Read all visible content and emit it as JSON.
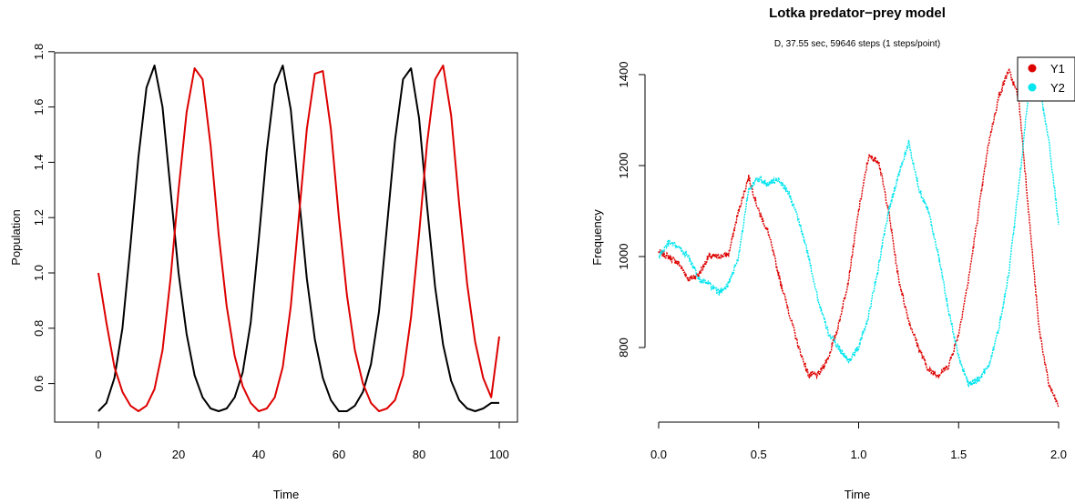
{
  "chart_data": [
    {
      "type": "line",
      "title": "",
      "xlabel": "Time",
      "ylabel": "Population",
      "xlim": [
        0,
        100
      ],
      "ylim": [
        0.5,
        1.75
      ],
      "xticks": [
        0,
        20,
        40,
        60,
        80,
        100
      ],
      "yticks": [
        0.6,
        0.8,
        1.0,
        1.2,
        1.4,
        1.6,
        1.8
      ],
      "xtick_labels": [
        "0",
        "20",
        "40",
        "60",
        "80",
        "100"
      ],
      "ytick_labels": [
        "0.6",
        "0.8",
        "1.0",
        "1.2",
        "1.4",
        "1.6",
        "1.8"
      ],
      "series_colors": [
        "#000000",
        "#dd0000"
      ],
      "series": [
        {
          "x": [
            0,
            2,
            4,
            6,
            8,
            10,
            12,
            14,
            16,
            18,
            20,
            22,
            24,
            26,
            28,
            30,
            32,
            34,
            36,
            38,
            40,
            42,
            44,
            46,
            48,
            50,
            52,
            54,
            56,
            58,
            60,
            62,
            64,
            66,
            68,
            70,
            72,
            74,
            76,
            78,
            80,
            82,
            84,
            86,
            88,
            90,
            92,
            94,
            96,
            98,
            100
          ],
          "values": [
            0.5,
            0.53,
            0.62,
            0.8,
            1.1,
            1.42,
            1.67,
            1.75,
            1.6,
            1.3,
            1.0,
            0.78,
            0.63,
            0.55,
            0.51,
            0.5,
            0.51,
            0.55,
            0.64,
            0.82,
            1.12,
            1.44,
            1.68,
            1.75,
            1.59,
            1.28,
            0.98,
            0.76,
            0.62,
            0.54,
            0.5,
            0.5,
            0.52,
            0.57,
            0.67,
            0.86,
            1.17,
            1.48,
            1.7,
            1.74,
            1.56,
            1.24,
            0.95,
            0.74,
            0.61,
            0.54,
            0.51,
            0.5,
            0.51,
            0.53,
            0.53
          ]
        },
        {
          "x": [
            0,
            2,
            4,
            6,
            8,
            10,
            12,
            14,
            16,
            18,
            20,
            22,
            24,
            26,
            28,
            30,
            32,
            34,
            36,
            38,
            40,
            42,
            44,
            46,
            48,
            50,
            52,
            54,
            56,
            58,
            60,
            62,
            64,
            66,
            68,
            70,
            72,
            74,
            76,
            78,
            80,
            82,
            84,
            86,
            88,
            90,
            92,
            94,
            96,
            98,
            100
          ],
          "values": [
            1.0,
            0.82,
            0.66,
            0.57,
            0.52,
            0.5,
            0.52,
            0.58,
            0.72,
            0.98,
            1.3,
            1.58,
            1.74,
            1.7,
            1.46,
            1.14,
            0.88,
            0.7,
            0.59,
            0.53,
            0.5,
            0.51,
            0.55,
            0.66,
            0.88,
            1.2,
            1.52,
            1.72,
            1.73,
            1.52,
            1.2,
            0.92,
            0.72,
            0.6,
            0.53,
            0.5,
            0.51,
            0.54,
            0.63,
            0.84,
            1.14,
            1.47,
            1.7,
            1.75,
            1.57,
            1.25,
            0.96,
            0.75,
            0.62,
            0.55,
            0.77
          ]
        }
      ]
    },
    {
      "type": "line",
      "title": "Lotka predator−prey model",
      "subtitle": "D, 37.55 sec, 59646 steps (1 steps/point)",
      "xlabel": "Time",
      "ylabel": "Frequency",
      "xlim": [
        0,
        2.0
      ],
      "ylim": [
        660,
        1420
      ],
      "xticks": [
        0.0,
        0.5,
        1.0,
        1.5,
        2.0
      ],
      "yticks": [
        800,
        1000,
        1200,
        1400
      ],
      "xtick_labels": [
        "0.0",
        "0.5",
        "1.0",
        "1.5",
        "2.0"
      ],
      "ytick_labels": [
        "800",
        "1000",
        "1200",
        "1400"
      ],
      "legend_position": "top-right",
      "series": [
        {
          "name": "Y1",
          "color": "#dd0000",
          "x": [
            0,
            0.05,
            0.1,
            0.15,
            0.2,
            0.25,
            0.3,
            0.35,
            0.4,
            0.45,
            0.5,
            0.55,
            0.6,
            0.65,
            0.7,
            0.75,
            0.8,
            0.85,
            0.9,
            0.95,
            1.0,
            1.05,
            1.1,
            1.15,
            1.2,
            1.25,
            1.3,
            1.35,
            1.4,
            1.45,
            1.5,
            1.55,
            1.6,
            1.65,
            1.7,
            1.75,
            1.8,
            1.85,
            1.9,
            1.95,
            2.0
          ],
          "values": [
            1010,
            1000,
            985,
            950,
            960,
            1000,
            1000,
            1005,
            1100,
            1175,
            1100,
            1050,
            960,
            880,
            800,
            740,
            740,
            780,
            850,
            950,
            1100,
            1220,
            1210,
            1100,
            950,
            860,
            800,
            750,
            740,
            760,
            830,
            950,
            1100,
            1250,
            1350,
            1410,
            1350,
            1100,
            850,
            720,
            670
          ]
        },
        {
          "name": "Y2",
          "color": "#00e5ee",
          "x": [
            0,
            0.05,
            0.1,
            0.15,
            0.2,
            0.25,
            0.3,
            0.35,
            0.4,
            0.45,
            0.5,
            0.55,
            0.6,
            0.65,
            0.7,
            0.75,
            0.8,
            0.85,
            0.9,
            0.95,
            1.0,
            1.05,
            1.1,
            1.15,
            1.2,
            1.25,
            1.3,
            1.35,
            1.4,
            1.45,
            1.5,
            1.55,
            1.6,
            1.65,
            1.7,
            1.75,
            1.8,
            1.85,
            1.9,
            1.95,
            2.0
          ],
          "values": [
            1000,
            1030,
            1020,
            1000,
            950,
            940,
            920,
            940,
            1000,
            1150,
            1170,
            1160,
            1170,
            1140,
            1080,
            1000,
            900,
            830,
            800,
            770,
            800,
            870,
            980,
            1100,
            1180,
            1250,
            1150,
            1100,
            1000,
            880,
            780,
            720,
            730,
            760,
            840,
            960,
            1150,
            1360,
            1380,
            1260,
            1070
          ]
        }
      ]
    }
  ]
}
